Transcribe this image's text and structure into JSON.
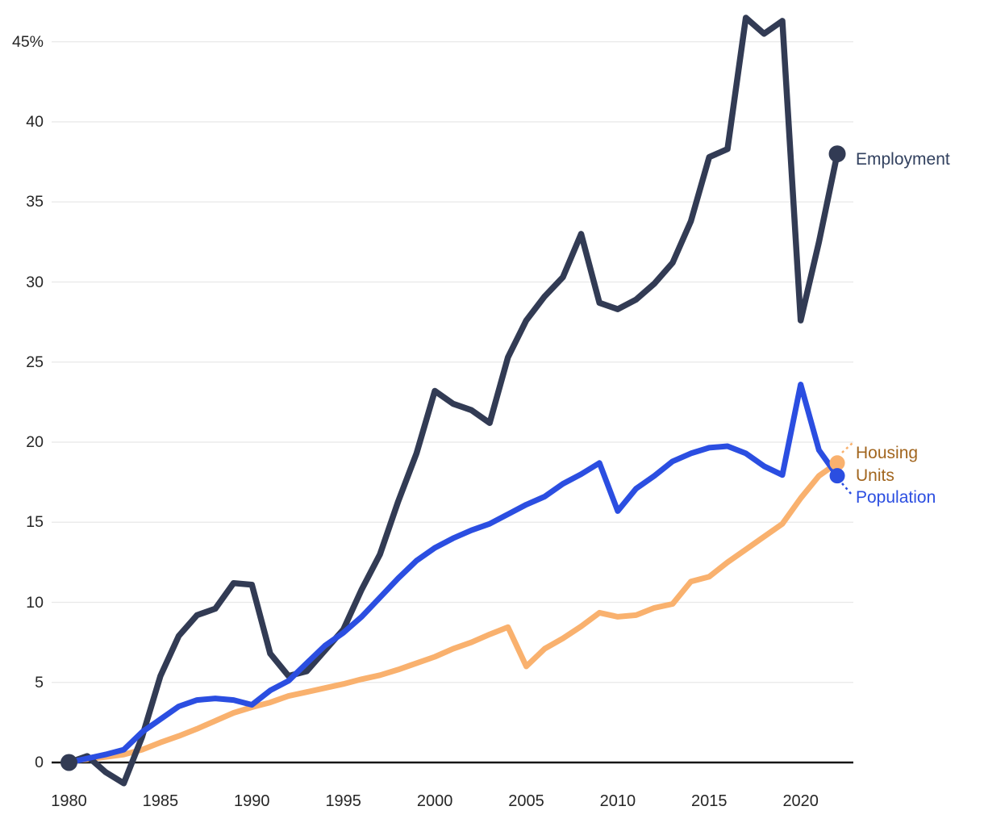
{
  "page": {
    "background": "#ffffff"
  },
  "chart_data": {
    "type": "line",
    "title": "",
    "xlabel": "",
    "ylabel": "",
    "y_unit": "%",
    "grid": "horizontal",
    "gridline_color": "#e8e8e8",
    "axis_color": "#161616",
    "tick_label_color": "#262626",
    "xlim": [
      1980,
      2022.5
    ],
    "ylim": [
      -2.5,
      47.5
    ],
    "legend_position": "end-of-line-labels-right",
    "x": [
      1980,
      1981,
      1982,
      1983,
      1984,
      1985,
      1986,
      1987,
      1988,
      1989,
      1990,
      1991,
      1992,
      1993,
      1994,
      1995,
      1996,
      1997,
      1998,
      1999,
      2000,
      2001,
      2002,
      2003,
      2004,
      2005,
      2006,
      2007,
      2008,
      2009,
      2010,
      2011,
      2012,
      2013,
      2014,
      2015,
      2016,
      2017,
      2018,
      2019,
      2020,
      2021,
      2022
    ],
    "x_tick_years": [
      1980,
      1985,
      1990,
      1995,
      2000,
      2005,
      2010,
      2015,
      2020
    ],
    "x_tick_labels": [
      "1980",
      "1985",
      "1990",
      "1995",
      "2000",
      "2005",
      "2010",
      "2015",
      "2020"
    ],
    "y_ticks": [
      0,
      5,
      10,
      15,
      20,
      25,
      30,
      35,
      40,
      45
    ],
    "y_tick_labels": [
      "0",
      "5",
      "10",
      "15",
      "20",
      "25",
      "30",
      "35",
      "40",
      "45%"
    ],
    "series": [
      {
        "name": "Employment",
        "color": "#323b54",
        "label_color": "#32415f",
        "start_dot": true,
        "end_dot": true,
        "values": [
          0,
          0.4,
          -0.6,
          -1.3,
          1.6,
          5.4,
          7.9,
          9.2,
          9.6,
          11.2,
          11.1,
          6.8,
          5.4,
          5.7,
          7.0,
          8.3,
          10.8,
          13.0,
          16.3,
          19.3,
          23.2,
          22.4,
          22.0,
          21.2,
          25.3,
          27.6,
          29.1,
          30.3,
          33.0,
          28.7,
          28.3,
          28.9,
          29.9,
          31.2,
          33.8,
          37.8,
          38.3,
          46.5,
          45.5,
          46.3,
          27.6,
          32.5,
          38.0
        ]
      },
      {
        "name": "Housing Units",
        "color": "#f9b16e",
        "label_color": "#a2661f",
        "start_dot": false,
        "end_dot": true,
        "values": [
          0.1,
          0.2,
          0.35,
          0.5,
          0.8,
          1.25,
          1.65,
          2.1,
          2.6,
          3.1,
          3.45,
          3.75,
          4.15,
          4.4,
          4.65,
          4.9,
          5.2,
          5.45,
          5.8,
          6.2,
          6.6,
          7.1,
          7.5,
          8.0,
          8.45,
          6.0,
          7.1,
          7.75,
          8.5,
          9.35,
          9.1,
          9.2,
          9.65,
          9.9,
          11.3,
          11.6,
          12.5,
          13.3,
          14.1,
          14.9,
          16.5,
          17.9,
          18.7
        ]
      },
      {
        "name": "Population",
        "color": "#2b4ee1",
        "label_color": "#2b4ee1",
        "start_dot": false,
        "end_dot": true,
        "values": [
          0,
          0.25,
          0.5,
          0.8,
          1.9,
          2.7,
          3.5,
          3.9,
          4.0,
          3.9,
          3.6,
          4.5,
          5.1,
          6.2,
          7.3,
          8.1,
          9.1,
          10.3,
          11.5,
          12.6,
          13.4,
          14.0,
          14.5,
          14.9,
          15.5,
          16.1,
          16.6,
          17.4,
          18.0,
          18.7,
          15.7,
          17.1,
          17.9,
          18.8,
          19.3,
          19.65,
          19.75,
          19.3,
          18.5,
          17.95,
          23.6,
          19.5,
          17.9
        ]
      }
    ]
  }
}
